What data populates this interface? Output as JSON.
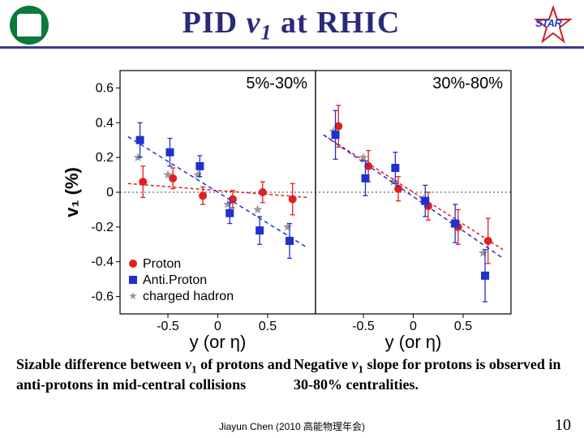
{
  "header": {
    "title_pid": "PID",
    "title_v": "v",
    "title_sub": "1",
    "title_rest": " at RHIC",
    "star_text": "STAR"
  },
  "chart": {
    "background": "#ffffff",
    "ylabel": "v₁ (%)",
    "xlabel": "y (or η)",
    "label_fontsize": 22,
    "tick_fontsize": 16,
    "ylim": [
      -0.7,
      0.7
    ],
    "yticks": [
      -0.6,
      -0.4,
      -0.2,
      0,
      0.2,
      0.4,
      0.6
    ],
    "xlim": [
      -0.98,
      0.98
    ],
    "xticks": [
      -0.5,
      0,
      0.5
    ],
    "panels": [
      {
        "label": "5%-30%"
      },
      {
        "label": "30%-80%"
      }
    ],
    "legend": {
      "items": [
        {
          "marker": "circle",
          "color": "#e02020",
          "label": "Proton"
        },
        {
          "marker": "square",
          "color": "#2030d0",
          "label": "Anti.Proton"
        },
        {
          "marker": "star",
          "color": "#9a9a9a",
          "label": "charged hadron"
        }
      ]
    },
    "series": {
      "proton": {
        "color": "#e02020",
        "marker": "circle",
        "marker_size": 5,
        "line_dash": "4,3",
        "panel0": {
          "x": [
            -0.75,
            -0.45,
            -0.15,
            0.15,
            0.45,
            0.75
          ],
          "y": [
            0.06,
            0.08,
            -0.02,
            -0.04,
            0.0,
            -0.04
          ],
          "ey": [
            0.09,
            0.06,
            0.05,
            0.05,
            0.06,
            0.09
          ],
          "fit": {
            "x0": -0.9,
            "y0": 0.05,
            "x1": 0.9,
            "y1": -0.03
          }
        },
        "panel1": {
          "x": [
            -0.75,
            -0.45,
            -0.15,
            0.15,
            0.45,
            0.75
          ],
          "y": [
            0.38,
            0.15,
            0.02,
            -0.08,
            -0.2,
            -0.28
          ],
          "ey": [
            0.12,
            0.09,
            0.07,
            0.08,
            0.1,
            0.13
          ],
          "fit": {
            "x0": -0.9,
            "y0": 0.33,
            "x1": 0.9,
            "y1": -0.33
          }
        }
      },
      "antiproton": {
        "color": "#2030d0",
        "marker": "square",
        "marker_size": 5,
        "line_dash": "5,4",
        "panel0": {
          "x": [
            -0.78,
            -0.48,
            -0.18,
            0.12,
            0.42,
            0.72
          ],
          "y": [
            0.3,
            0.23,
            0.15,
            -0.12,
            -0.22,
            -0.28
          ],
          "ey": [
            0.1,
            0.08,
            0.06,
            0.06,
            0.08,
            0.1
          ],
          "fit": {
            "x0": -0.9,
            "y0": 0.32,
            "x1": 0.9,
            "y1": -0.32
          }
        },
        "panel1": {
          "x": [
            -0.78,
            -0.48,
            -0.18,
            0.12,
            0.42,
            0.72
          ],
          "y": [
            0.33,
            0.08,
            0.14,
            -0.05,
            -0.18,
            -0.48
          ],
          "ey": [
            0.14,
            0.1,
            0.09,
            0.09,
            0.11,
            0.15
          ],
          "fit": {
            "x0": -0.9,
            "y0": 0.33,
            "x1": 0.9,
            "y1": -0.38
          }
        }
      },
      "charged": {
        "color": "#9a9a9a",
        "marker": "star",
        "marker_size": 6,
        "panel0": {
          "x": [
            -0.8,
            -0.5,
            -0.2,
            0.1,
            0.4,
            0.7
          ],
          "y": [
            0.2,
            0.1,
            0.1,
            -0.07,
            -0.1,
            -0.2
          ],
          "ey": [
            0.0,
            0.0,
            0.0,
            0.0,
            0.0,
            0.0
          ]
        },
        "panel1": {
          "x": [
            -0.8,
            -0.5,
            -0.2,
            0.1,
            0.4,
            0.7
          ],
          "y": [
            0.35,
            0.2,
            0.06,
            -0.04,
            -0.18,
            -0.35
          ],
          "ey": [
            0.0,
            0.0,
            0.0,
            0.0,
            0.0,
            0.0
          ]
        }
      }
    }
  },
  "text": {
    "bottom_left_1": "Sizable difference between ",
    "bottom_left_v": "v",
    "bottom_left_sub": "1",
    "bottom_left_2": " of protons and anti-protons in mid-central collisions",
    "bottom_right_1": "Negative ",
    "bottom_right_v": "v",
    "bottom_right_sub": "1",
    "bottom_right_2": " slope for protons is observed in 30-80% centralities.",
    "footer": "Jiayun Chen (2010 高能物理年会)",
    "page": "10"
  }
}
